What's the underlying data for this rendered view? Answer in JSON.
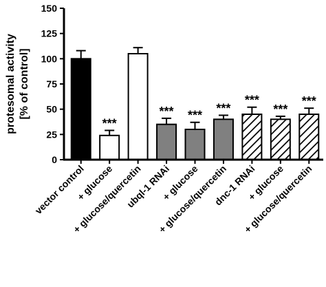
{
  "chart_data": {
    "type": "bar",
    "ylabel_line1": "protesomal activity",
    "ylabel_line2": "[% of control]",
    "ylim": [
      0,
      150
    ],
    "yticks": [
      "0",
      "25",
      "50",
      "75",
      "100",
      "125",
      "150"
    ],
    "categories": [
      "vector control",
      "+ glucose",
      "+ glucose/quercetin",
      "ubql-1 RNAi",
      "+ glucose",
      "+ glucose/quercetin",
      "dnc-1 RNAi",
      "+ glucose",
      "+ glucose/quercetin"
    ],
    "values": [
      100,
      24,
      105,
      35,
      30,
      40,
      45,
      40,
      45
    ],
    "errors": [
      8,
      5,
      6,
      6,
      7,
      4,
      7,
      3,
      6
    ],
    "significance": [
      "",
      "***",
      "",
      "***",
      "***",
      "***",
      "***",
      "***",
      "***"
    ],
    "fills": [
      "solid-black",
      "white",
      "white",
      "solid-gray",
      "solid-gray",
      "solid-gray",
      "hatched",
      "hatched",
      "hatched"
    ],
    "colors": {
      "black": "#000000",
      "gray": "#808080",
      "white": "#ffffff"
    }
  }
}
